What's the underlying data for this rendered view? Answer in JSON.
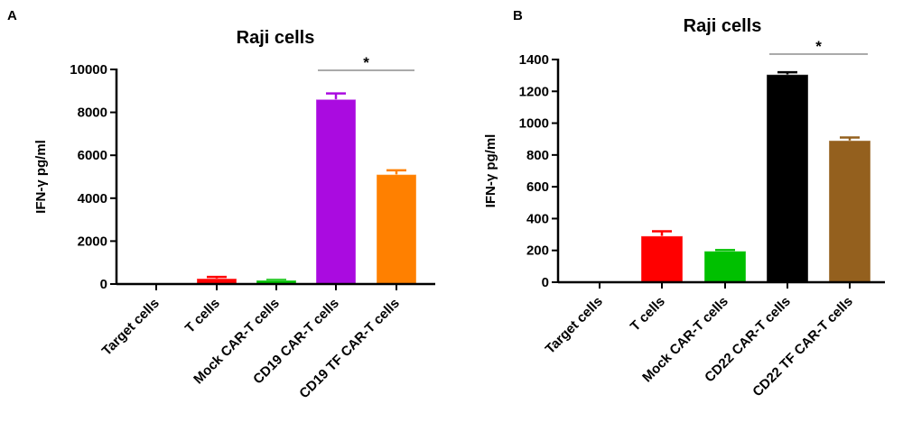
{
  "chart_data": [
    {
      "type": "bar",
      "panel": "A",
      "title": "Raji cells",
      "ylabel": "IFN-γ pg/ml",
      "xlabel": "",
      "ylim": [
        0,
        10000
      ],
      "yticks": [
        0,
        2000,
        4000,
        6000,
        8000,
        10000
      ],
      "categories": [
        "Target cells",
        "T cells",
        "Mock CAR-T cells",
        "CD19 CAR-T cells",
        "CD19 TF CAR-T cells"
      ],
      "values": [
        0,
        250,
        170,
        8600,
        5100
      ],
      "error_upper": [
        0,
        330,
        190,
        8880,
        5300
      ],
      "colors": [
        "#ffffff",
        "#ff0000",
        "#00c000",
        "#aa0be0",
        "#ff8000"
      ],
      "significance": {
        "from": 3,
        "to": 4,
        "label": "*"
      }
    },
    {
      "type": "bar",
      "panel": "B",
      "title": "Raji cells",
      "ylabel": "IFN-γ pg/ml",
      "xlabel": "",
      "ylim": [
        0,
        1400
      ],
      "yticks": [
        0,
        200,
        400,
        600,
        800,
        1000,
        1200,
        1400
      ],
      "categories": [
        "Target cells",
        "T cells",
        "Mock CAR-T cells",
        "CD22 CAR-T cells",
        "CD22 TF CAR-T cells"
      ],
      "values": [
        0,
        290,
        195,
        1305,
        890
      ],
      "error_upper": [
        0,
        320,
        202,
        1320,
        910
      ],
      "colors": [
        "#ffffff",
        "#ff0000",
        "#00c000",
        "#000000",
        "#94601e"
      ],
      "significance": {
        "from": 3,
        "to": 4,
        "label": "*"
      }
    }
  ]
}
